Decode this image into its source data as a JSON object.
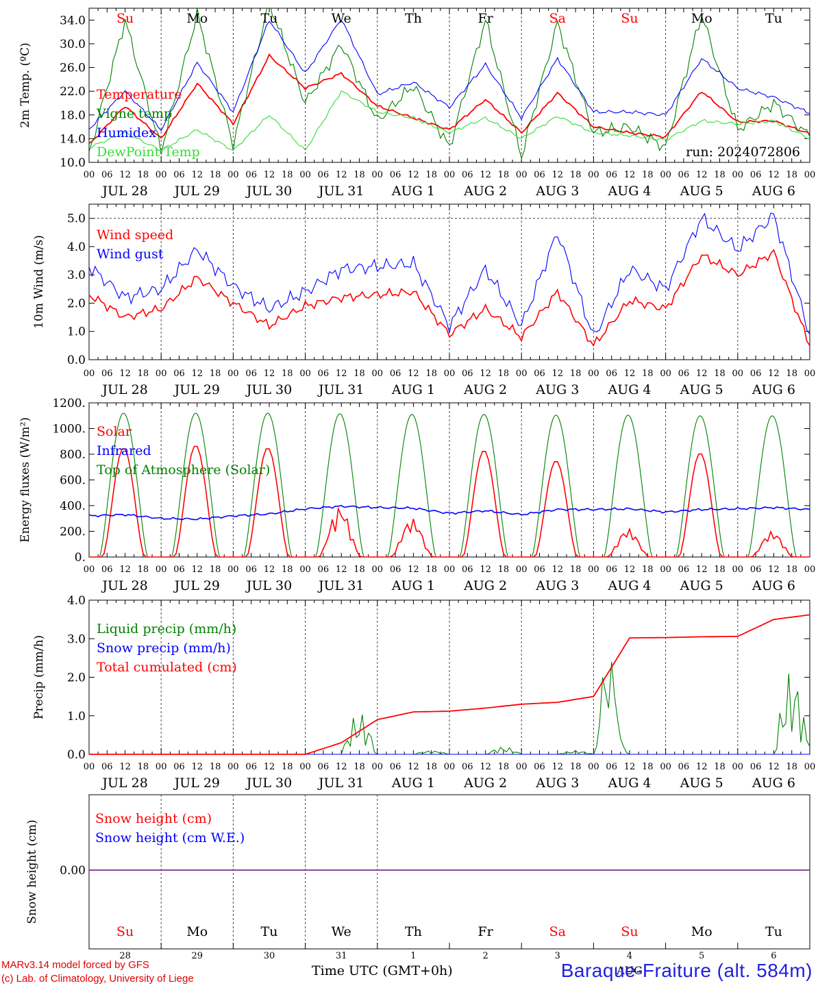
{
  "run_label": "run: 2024072806",
  "day_names": [
    "Su",
    "Mo",
    "Tu",
    "We",
    "Th",
    "Fr",
    "Sa",
    "Su",
    "Mo",
    "Tu"
  ],
  "weekend_flags": [
    true,
    false,
    false,
    false,
    false,
    false,
    true,
    true,
    false,
    false
  ],
  "date_labels": [
    "JUL 28",
    "JUL 29",
    "JUL 30",
    "JUL 31",
    "AUG 1",
    "AUG 2",
    "AUG 3",
    "AUG 4",
    "AUG 5",
    "AUG 6"
  ],
  "day_numbers": [
    "28",
    "29",
    "30",
    "31",
    "1",
    "2",
    "3",
    "4",
    "5",
    "6"
  ],
  "month_label": "AUG",
  "hour_labels": [
    "00",
    "06",
    "12",
    "18"
  ],
  "colors": {
    "red": "#ff0000",
    "green": "#008000",
    "blue": "#0000ff",
    "lightgreen": "#33dd33",
    "purple": "#7a2f8a"
  },
  "footer": {
    "model_line": "MARv3.14 model forced by GFS",
    "lab_line": "(c) Lab. of Climatology, University of Liege",
    "time_axis": "Time UTC (GMT+0h)",
    "station": "Baraque-Fraiture (alt. 584m)"
  },
  "chart_data": [
    {
      "type": "line",
      "ylabel": "2m Temp. (ºC)",
      "ylim": [
        10,
        36
      ],
      "y_ticks": [
        "10.0",
        "14.0",
        "18.0",
        "22.0",
        "26.0",
        "30.0",
        "34.0"
      ],
      "x": [
        "07-28 00",
        "07-28 12",
        "07-29 00",
        "07-29 12",
        "07-30 00",
        "07-30 12",
        "07-31 00",
        "07-31 12",
        "08-01 00",
        "08-01 12",
        "08-02 00",
        "08-02 12",
        "08-03 00",
        "08-03 12",
        "08-04 00",
        "08-04 12",
        "08-05 00",
        "08-05 12",
        "08-06 00",
        "08-06 12",
        "08-07 00"
      ],
      "series": [
        {
          "name": "Temperature",
          "color": "red",
          "values": [
            13.0,
            19.5,
            14.0,
            23.3,
            16.5,
            28.0,
            22.5,
            25.0,
            19.5,
            17.5,
            15.5,
            20.6,
            15.0,
            21.7,
            16.0,
            15.0,
            14.3,
            22.0,
            16.8,
            17.0,
            14.8
          ]
        },
        {
          "name": "Vigne temp",
          "color": "green",
          "values": [
            11.5,
            34.0,
            12.0,
            35.0,
            13.0,
            37.0,
            20.0,
            30.0,
            17.0,
            23.0,
            12.5,
            34.0,
            11.0,
            33.5,
            15.0,
            16.0,
            12.5,
            35.0,
            15.5,
            20.0,
            14.3
          ]
        },
        {
          "name": "Humidex",
          "color": "blue",
          "values": [
            15.6,
            22.0,
            15.5,
            26.8,
            18.5,
            34.0,
            25.0,
            34.2,
            21.5,
            23.5,
            19.3,
            26.5,
            17.5,
            27.5,
            18.5,
            18.5,
            18.0,
            27.5,
            22.5,
            21.0,
            18.3
          ]
        },
        {
          "name": "DewPoint Temp",
          "color": "lightgreen",
          "values": [
            12.5,
            15.0,
            12.0,
            15.5,
            12.0,
            18.0,
            12.0,
            22.0,
            18.5,
            17.5,
            15.0,
            17.5,
            14.0,
            17.8,
            15.0,
            14.5,
            13.8,
            17.0,
            16.5,
            17.0,
            14.0
          ]
        }
      ]
    },
    {
      "type": "line",
      "ylabel": "10m Wind (m/s)",
      "ylim": [
        0,
        5.5
      ],
      "y_ticks": [
        "0.0",
        "1.0",
        "2.0",
        "3.0",
        "4.0",
        "5.0"
      ],
      "x": [
        "07-28 00",
        "07-28 12",
        "07-29 00",
        "07-29 12",
        "07-30 00",
        "07-30 12",
        "07-31 00",
        "07-31 12",
        "08-01 00",
        "08-01 12",
        "08-02 00",
        "08-02 12",
        "08-03 00",
        "08-03 12",
        "08-04 00",
        "08-04 12",
        "08-05 00",
        "08-05 12",
        "08-06 00",
        "08-06 12",
        "08-07 00"
      ],
      "series": [
        {
          "name": "Wind speed",
          "color": "red",
          "values": [
            2.3,
            1.5,
            1.8,
            2.9,
            2.0,
            1.2,
            1.9,
            2.2,
            2.3,
            2.4,
            0.9,
            1.8,
            0.8,
            2.4,
            0.5,
            2.1,
            1.8,
            3.7,
            3.0,
            3.8,
            0.5
          ]
        },
        {
          "name": "Wind gust",
          "color": "blue",
          "values": [
            3.3,
            2.2,
            2.5,
            3.9,
            2.6,
            1.8,
            2.4,
            3.2,
            3.3,
            3.4,
            1.2,
            3.2,
            1.2,
            4.5,
            0.8,
            3.2,
            2.5,
            5.0,
            3.9,
            5.1,
            0.9
          ]
        }
      ]
    },
    {
      "type": "line",
      "ylabel": "Energy fluxes (W/m²)",
      "ylim": [
        0,
        1200
      ],
      "y_ticks": [
        "0.",
        "200.",
        "400.",
        "600.",
        "800.",
        "1000.",
        "1200."
      ],
      "x": [
        "07-28 00",
        "07-28 12",
        "07-29 00",
        "07-29 12",
        "07-30 00",
        "07-30 12",
        "07-31 00",
        "07-31 12",
        "08-01 00",
        "08-01 12",
        "08-02 00",
        "08-02 12",
        "08-03 00",
        "08-03 12",
        "08-04 00",
        "08-04 12",
        "08-05 00",
        "08-05 12",
        "08-06 00",
        "08-06 12",
        "08-07 00"
      ],
      "series": [
        {
          "name": "Solar",
          "color": "red",
          "peaks": [
            850,
            870,
            850,
            390,
            300,
            830,
            750,
            220,
            810,
            200
          ]
        },
        {
          "name": "Infrared",
          "color": "blue",
          "values": [
            320,
            330,
            300,
            295,
            320,
            335,
            375,
            395,
            385,
            380,
            340,
            360,
            330,
            370,
            370,
            375,
            350,
            370,
            375,
            385,
            370
          ]
        },
        {
          "name": "Top of Atmosphere (Solar)",
          "color": "green",
          "peaks": [
            1120,
            1120,
            1120,
            1115,
            1110,
            1110,
            1105,
            1105,
            1100,
            1100
          ]
        }
      ]
    },
    {
      "type": "line",
      "ylabel": "Precip (mm/h)",
      "ylim": [
        0,
        4.0
      ],
      "y_ticks": [
        "0.0",
        "1.0",
        "2.0",
        "3.0",
        "4.0"
      ],
      "x": [
        "07-28 00",
        "07-28 12",
        "07-29 00",
        "07-29 12",
        "07-30 00",
        "07-30 12",
        "07-31 00",
        "07-31 12",
        "08-01 00",
        "08-01 12",
        "08-02 00",
        "08-02 12",
        "08-03 00",
        "08-03 12",
        "08-04 00",
        "08-04 12",
        "08-05 00",
        "08-05 12",
        "08-06 00",
        "08-06 12",
        "08-07 00"
      ],
      "series": [
        {
          "name": "Liquid precip (mm/h)",
          "color": "green",
          "values": [
            0,
            0,
            0,
            0,
            0,
            0,
            0,
            1.1,
            0,
            0.1,
            0,
            0.2,
            0,
            0.1,
            0,
            0,
            0,
            0,
            0,
            2.2,
            0.2
          ]
        },
        {
          "name": "Snow precip (mm/h)",
          "color": "blue",
          "values": [
            0,
            0,
            0,
            0,
            0,
            0,
            0,
            0,
            0,
            0,
            0,
            0,
            0,
            0,
            0,
            0,
            0,
            0,
            0,
            0,
            0
          ]
        },
        {
          "name": "Total cumulated (cm)",
          "color": "red",
          "values": [
            0,
            0,
            0,
            0,
            0,
            0,
            0,
            0.3,
            0.9,
            1.1,
            1.12,
            1.2,
            1.3,
            1.35,
            1.5,
            3.02,
            3.03,
            3.05,
            3.06,
            3.5,
            3.62
          ]
        }
      ]
    },
    {
      "type": "line",
      "ylabel": "Snow height (cm)",
      "y_ticks": [
        "0.00"
      ],
      "series": [
        {
          "name": "Snow height (cm)",
          "color": "red",
          "values": [
            0,
            0
          ]
        },
        {
          "name": "Snow height (cm W.E.)",
          "color": "blue",
          "values": [
            0,
            0
          ]
        }
      ]
    }
  ]
}
